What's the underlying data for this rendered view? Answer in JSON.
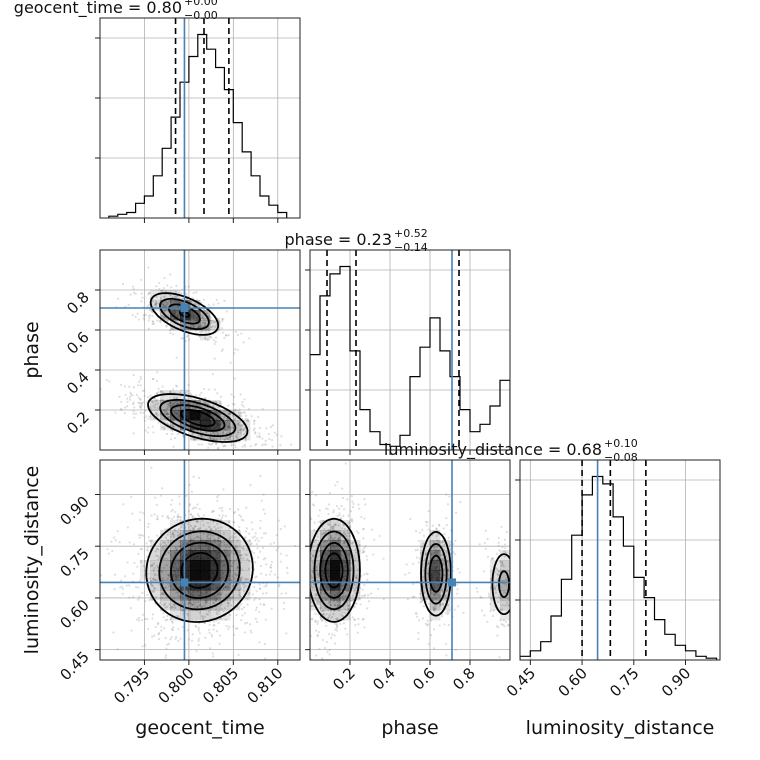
{
  "chart_data": {
    "type": "corner",
    "parameters": [
      "geocent_time",
      "phase",
      "luminosity_distance"
    ],
    "ranges": {
      "geocent_time": [
        0.79,
        0.8125
      ],
      "phase": [
        0.0,
        1.0
      ],
      "luminosity_distance": [
        0.42,
        1.0
      ]
    },
    "ticks": {
      "geocent_time": [
        0.795,
        0.8,
        0.805,
        0.81
      ],
      "phase": [
        0.2,
        0.4,
        0.6,
        0.8
      ],
      "luminosity_distance": [
        0.45,
        0.6,
        0.75,
        0.9
      ]
    },
    "tick_labels": {
      "geocent_time": [
        "0.795",
        "0.800",
        "0.805",
        "0.810"
      ],
      "phase": [
        "0.2",
        "0.4",
        "0.6",
        "0.8"
      ],
      "luminosity_distance": [
        "0.45",
        "0.60",
        "0.75",
        "0.90"
      ]
    },
    "axis_labels": {
      "geocent_time": "geocent_time",
      "phase": "phase",
      "luminosity_distance": "luminosity_distance"
    },
    "titles": [
      {
        "param": "geocent_time",
        "text": "geocent_time = 0.80",
        "plus": "+0.00",
        "minus": "−0.00"
      },
      {
        "param": "phase",
        "text": "phase = 0.23",
        "plus": "+0.52",
        "minus": "−0.14"
      },
      {
        "param": "luminosity_distance",
        "text": "luminosity_distance = 0.68",
        "plus": "+0.10",
        "minus": "−0.08"
      }
    ],
    "truths": {
      "geocent_time": 0.7995,
      "phase": 0.71,
      "luminosity_distance": 0.645
    },
    "quantiles": {
      "geocent_time": [
        0.7985,
        0.8017,
        0.8045
      ],
      "phase": [
        0.085,
        0.23,
        0.745
      ],
      "luminosity_distance": [
        0.6,
        0.682,
        0.785
      ]
    },
    "histograms": {
      "geocent_time": {
        "bin_edges": [
          0.791,
          0.792,
          0.793,
          0.794,
          0.795,
          0.796,
          0.797,
          0.798,
          0.799,
          0.8,
          0.801,
          0.802,
          0.803,
          0.804,
          0.805,
          0.806,
          0.807,
          0.808,
          0.809,
          0.81,
          0.811
        ],
        "counts": [
          1,
          2,
          3,
          8,
          12,
          23,
          38,
          55,
          74,
          88,
          100,
          92,
          82,
          70,
          52,
          36,
          23,
          12,
          7,
          3
        ]
      },
      "phase": {
        "bin_edges": [
          0.0,
          0.05,
          0.1,
          0.15,
          0.2,
          0.25,
          0.3,
          0.35,
          0.4,
          0.45,
          0.5,
          0.55,
          0.6,
          0.65,
          0.7,
          0.75,
          0.8,
          0.85,
          0.9,
          0.95,
          1.0
        ],
        "counts": [
          52,
          84,
          96,
          100,
          54,
          22,
          10,
          3,
          2,
          8,
          40,
          56,
          72,
          54,
          40,
          22,
          10,
          14,
          24,
          38
        ]
      },
      "luminosity_distance": {
        "bin_edges": [
          0.42,
          0.45,
          0.48,
          0.51,
          0.54,
          0.57,
          0.6,
          0.63,
          0.66,
          0.69,
          0.72,
          0.75,
          0.78,
          0.81,
          0.84,
          0.87,
          0.9,
          0.93,
          0.96,
          0.99
        ],
        "counts": [
          2,
          5,
          10,
          24,
          44,
          68,
          90,
          100,
          96,
          78,
          62,
          45,
          34,
          22,
          14,
          8,
          5,
          2,
          1
        ]
      }
    },
    "grid": true,
    "scatter_color": "#888888",
    "density_color": "#000000",
    "truth_color": "#4682b4"
  }
}
